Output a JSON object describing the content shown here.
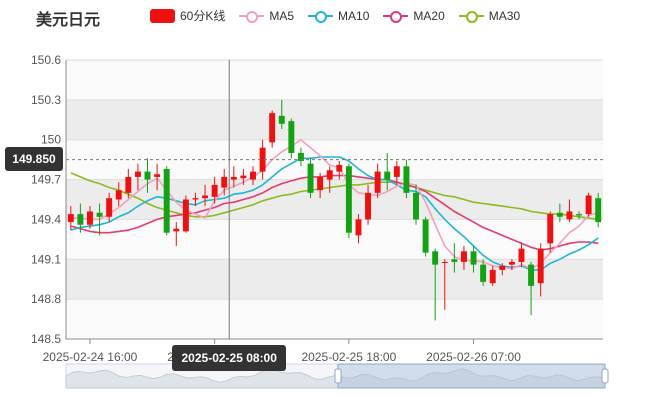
{
  "title": "美元日元",
  "legend": [
    {
      "label": "60分K线",
      "color": "#ee1111",
      "kind": "rect"
    },
    {
      "label": "MA5",
      "color": "#f4a0bd",
      "kind": "line"
    },
    {
      "label": "MA10",
      "color": "#1fb6d6",
      "kind": "line"
    },
    {
      "label": "MA20",
      "color": "#e23c6e",
      "kind": "line"
    },
    {
      "label": "MA30",
      "color": "#8fba1f",
      "kind": "line"
    }
  ],
  "crosshair": {
    "price": "149.850",
    "time": "2025-02-25 08:00"
  },
  "chart_data": {
    "type": "candlestick",
    "ylim": [
      148.5,
      150.6
    ],
    "y_ticks": [
      "150.6",
      "150.3",
      "150",
      "149.7",
      "149.4",
      "149.1",
      "148.8",
      "148.5"
    ],
    "x_tick_labels": [
      "2025-02-24 16:00",
      "2025-02-25 08:00",
      "2025-02-25 18:00",
      "2025-02-26 07:00"
    ],
    "colors": {
      "up": "#ee1111",
      "down": "#14a114"
    },
    "candles": [
      [
        149.38,
        149.44,
        149.32,
        149.5
      ],
      [
        149.44,
        149.36,
        149.3,
        149.52
      ],
      [
        149.36,
        149.46,
        149.33,
        149.5
      ],
      [
        149.45,
        149.42,
        149.28,
        149.52
      ],
      [
        149.42,
        149.56,
        149.38,
        149.6
      ],
      [
        149.55,
        149.62,
        149.5,
        149.68
      ],
      [
        149.6,
        149.72,
        149.56,
        149.78
      ],
      [
        149.72,
        149.76,
        149.62,
        149.82
      ],
      [
        149.76,
        149.7,
        149.6,
        149.86
      ],
      [
        149.72,
        149.74,
        149.62,
        149.82
      ],
      [
        149.78,
        149.3,
        149.28,
        149.8
      ],
      [
        149.31,
        149.33,
        149.2,
        149.38
      ],
      [
        149.31,
        149.55,
        149.3,
        149.58
      ],
      [
        149.55,
        149.56,
        149.5,
        149.6
      ],
      [
        149.56,
        149.58,
        149.5,
        149.66
      ],
      [
        149.57,
        149.66,
        149.52,
        149.72
      ],
      [
        149.64,
        149.72,
        149.58,
        149.78
      ],
      [
        149.7,
        149.72,
        149.64,
        149.8
      ],
      [
        149.71,
        149.73,
        149.66,
        149.78
      ],
      [
        149.7,
        149.76,
        149.66,
        149.8
      ],
      [
        149.76,
        149.94,
        149.7,
        150.0
      ],
      [
        149.98,
        150.2,
        149.94,
        150.22
      ],
      [
        150.18,
        150.12,
        150.08,
        150.3
      ],
      [
        150.14,
        149.9,
        149.86,
        150.16
      ],
      [
        149.9,
        149.84,
        149.8,
        149.94
      ],
      [
        149.82,
        149.6,
        149.56,
        149.86
      ],
      [
        149.62,
        149.72,
        149.56,
        149.75
      ],
      [
        149.7,
        149.77,
        149.6,
        149.8
      ],
      [
        149.76,
        149.81,
        149.7,
        149.84
      ],
      [
        149.8,
        149.3,
        149.26,
        149.82
      ],
      [
        149.28,
        149.4,
        149.22,
        149.44
      ],
      [
        149.4,
        149.6,
        149.36,
        149.66
      ],
      [
        149.6,
        149.76,
        149.56,
        149.82
      ],
      [
        149.76,
        149.7,
        149.62,
        149.9
      ],
      [
        149.72,
        149.8,
        149.66,
        149.84
      ],
      [
        149.8,
        149.6,
        149.56,
        149.85
      ],
      [
        149.6,
        149.4,
        149.36,
        149.66
      ],
      [
        149.4,
        149.15,
        149.12,
        149.42
      ],
      [
        149.16,
        149.06,
        148.64,
        149.18
      ],
      [
        149.08,
        149.08,
        148.72,
        149.1
      ],
      [
        149.1,
        149.08,
        149.0,
        149.22
      ],
      [
        149.08,
        149.16,
        149.02,
        149.2
      ],
      [
        149.16,
        149.06,
        149.0,
        149.2
      ],
      [
        149.06,
        148.93,
        148.9,
        149.1
      ],
      [
        148.92,
        149.02,
        148.9,
        149.05
      ],
      [
        149.02,
        149.05,
        148.98,
        149.07
      ],
      [
        149.06,
        149.08,
        149.02,
        149.1
      ],
      [
        149.08,
        149.18,
        149.04,
        149.22
      ],
      [
        149.06,
        148.9,
        148.68,
        149.08
      ],
      [
        148.92,
        149.18,
        148.82,
        149.22
      ],
      [
        149.22,
        149.44,
        149.15,
        149.46
      ],
      [
        149.45,
        149.42,
        149.38,
        149.52
      ],
      [
        149.4,
        149.46,
        149.38,
        149.55
      ],
      [
        149.44,
        149.43,
        149.4,
        149.46
      ],
      [
        149.44,
        149.58,
        149.42,
        149.6
      ],
      [
        149.56,
        149.38,
        149.34,
        149.6
      ]
    ],
    "ma5": [
      149.41,
      149.41,
      149.4,
      149.4,
      149.44,
      149.49,
      149.55,
      149.61,
      149.67,
      149.71,
      149.62,
      149.53,
      149.47,
      149.44,
      149.41,
      149.54,
      149.62,
      149.65,
      149.68,
      149.72,
      149.77,
      149.85,
      149.91,
      149.95,
      150.0,
      149.94,
      149.88,
      149.81,
      149.79,
      149.66,
      149.6,
      149.59,
      149.58,
      149.61,
      149.65,
      149.67,
      149.66,
      149.53,
      149.36,
      149.2,
      149.12,
      149.09,
      149.09,
      149.08,
      149.05,
      149.04,
      149.03,
      149.06,
      149.03,
      149.07,
      149.15,
      149.22,
      149.3,
      149.35,
      149.43,
      149.45
    ],
    "ma10": [
      149.32,
      149.34,
      149.35,
      149.36,
      149.38,
      149.42,
      149.45,
      149.5,
      149.54,
      149.57,
      149.56,
      149.54,
      149.52,
      149.51,
      149.54,
      149.55,
      149.56,
      149.59,
      149.6,
      149.62,
      149.66,
      149.72,
      149.78,
      149.82,
      149.86,
      149.86,
      149.87,
      149.87,
      149.87,
      149.84,
      149.78,
      149.73,
      149.7,
      149.7,
      149.66,
      149.62,
      149.61,
      149.57,
      149.48,
      149.4,
      149.33,
      149.27,
      149.2,
      149.13,
      149.08,
      149.05,
      149.04,
      149.05,
      149.02,
      149.02,
      149.07,
      149.1,
      149.14,
      149.17,
      149.21,
      149.26
    ],
    "ma20": [
      149.35,
      149.33,
      149.31,
      149.3,
      149.3,
      149.31,
      149.32,
      149.34,
      149.37,
      149.4,
      149.42,
      149.43,
      149.44,
      149.45,
      149.47,
      149.49,
      149.52,
      149.53,
      149.55,
      149.57,
      149.6,
      149.64,
      149.67,
      149.69,
      149.71,
      149.72,
      149.72,
      149.73,
      149.73,
      149.73,
      149.72,
      149.71,
      149.7,
      149.7,
      149.68,
      149.66,
      149.64,
      149.61,
      149.56,
      149.51,
      149.46,
      149.42,
      149.38,
      149.34,
      149.31,
      149.28,
      149.25,
      149.22,
      149.19,
      149.17,
      149.18,
      149.2,
      149.22,
      149.23,
      149.23,
      149.22
    ],
    "ma30": [
      149.75,
      149.72,
      149.69,
      149.67,
      149.64,
      149.62,
      149.59,
      149.56,
      149.52,
      149.49,
      149.47,
      149.45,
      149.43,
      149.42,
      149.42,
      149.43,
      149.45,
      149.47,
      149.49,
      149.51,
      149.54,
      149.56,
      149.58,
      149.59,
      149.61,
      149.62,
      149.63,
      149.64,
      149.65,
      149.66,
      149.66,
      149.67,
      149.68,
      149.68,
      149.68,
      149.66,
      149.64,
      149.62,
      149.6,
      149.58,
      149.57,
      149.55,
      149.53,
      149.52,
      149.51,
      149.5,
      149.49,
      149.48,
      149.46,
      149.45,
      149.44,
      149.44,
      149.43,
      149.42,
      149.41,
      149.4
    ]
  }
}
